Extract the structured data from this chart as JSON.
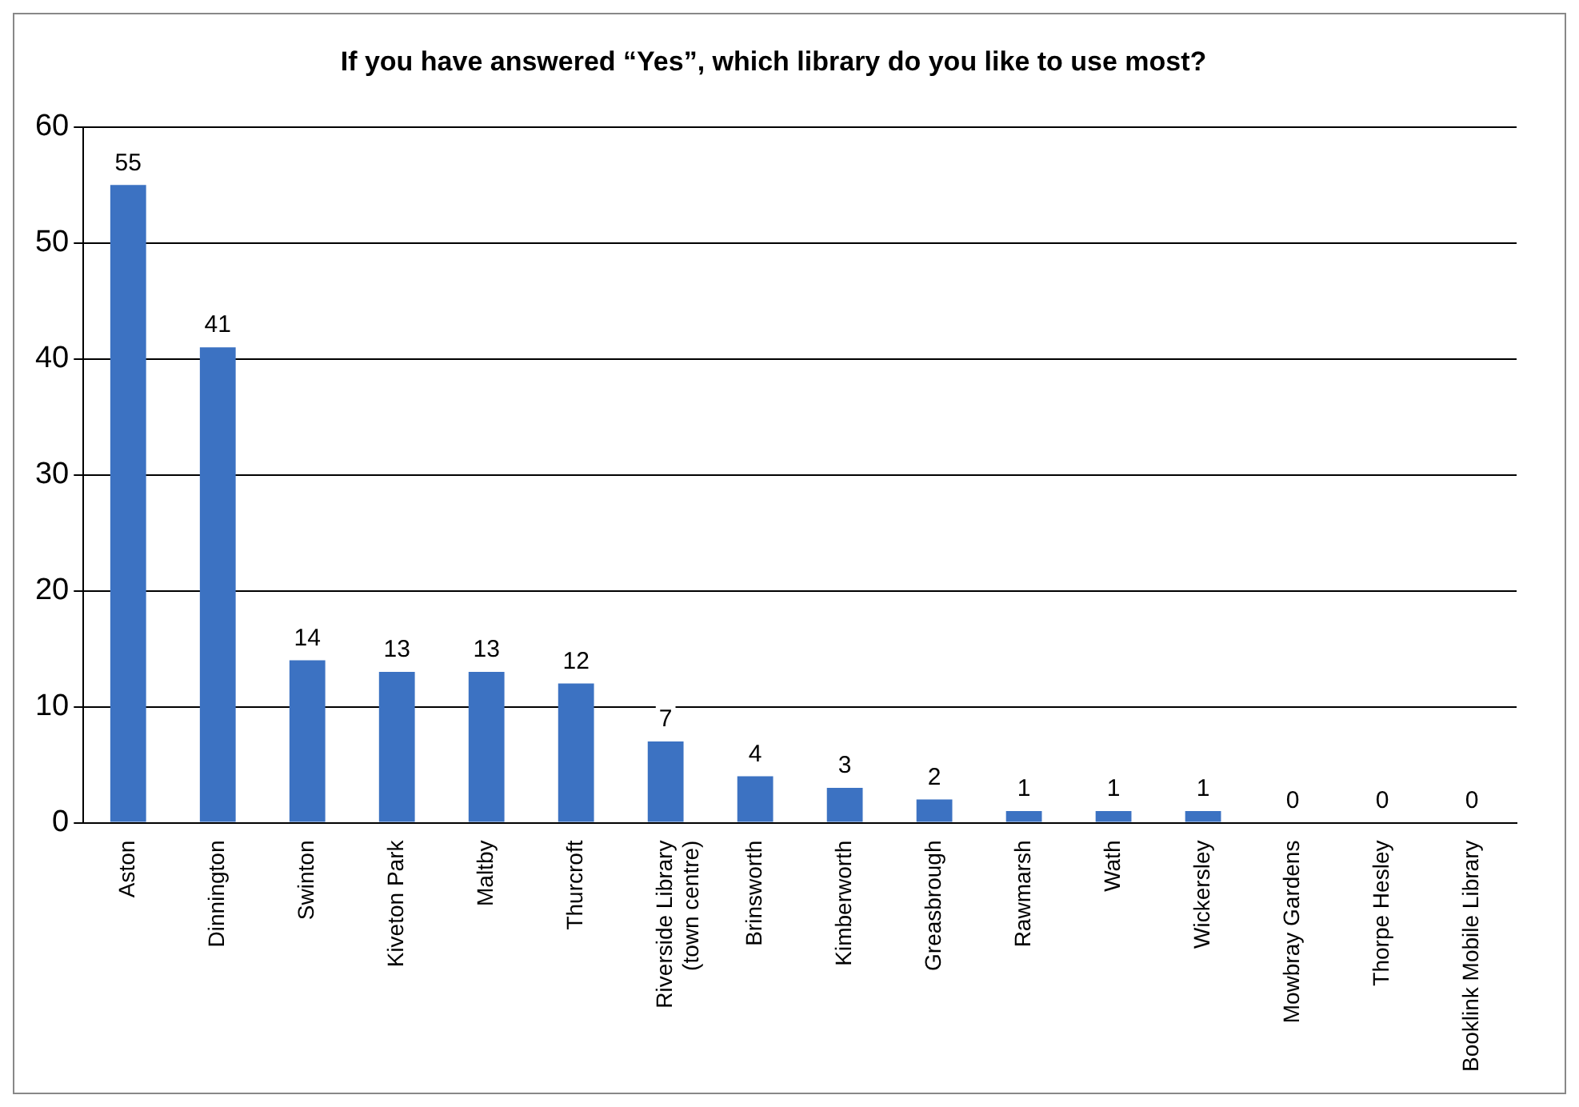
{
  "chart_data": {
    "type": "bar",
    "title": "If you have answered “Yes”, which library do you like to use most?",
    "categories": [
      "Aston",
      "Dinnington",
      "Swinton",
      "Kiveton Park",
      "Maltby",
      "Thurcroft",
      "Riverside Library (town centre)",
      "Brinsworth",
      "Kimberworth",
      "Greasbrough",
      "Rawmarsh",
      "Wath",
      "Wickersley",
      "Mowbray Gardens",
      "Thorpe Hesley",
      "Booklink Mobile Library"
    ],
    "values": [
      55,
      41,
      14,
      13,
      13,
      12,
      7,
      4,
      3,
      2,
      1,
      1,
      1,
      0,
      0,
      0
    ],
    "color": "#3c72c2",
    "ylim": [
      0,
      60
    ],
    "yticks": [
      0,
      10,
      20,
      30,
      40,
      50,
      60
    ],
    "grid": "y",
    "data_labels": true,
    "legend": false
  }
}
